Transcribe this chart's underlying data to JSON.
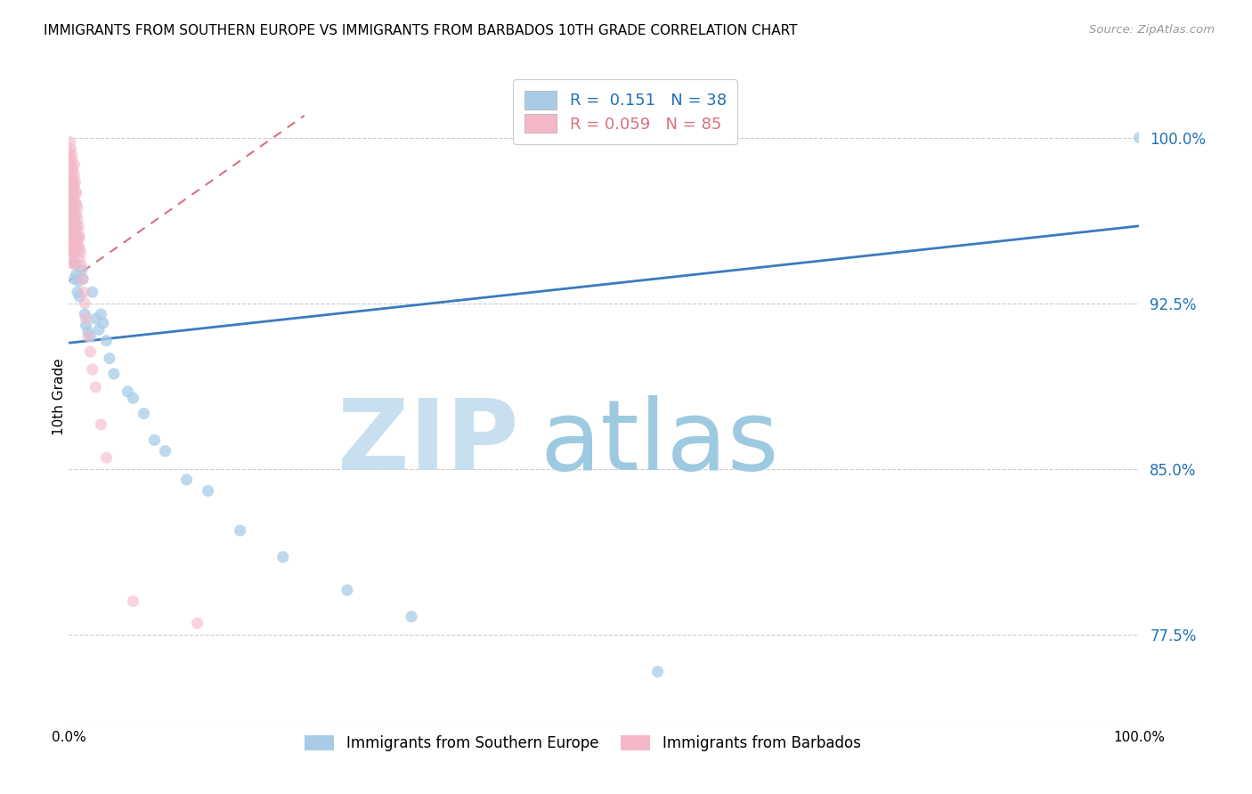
{
  "title": "IMMIGRANTS FROM SOUTHERN EUROPE VS IMMIGRANTS FROM BARBADOS 10TH GRADE CORRELATION CHART",
  "source": "Source: ZipAtlas.com",
  "ylabel": "10th Grade",
  "ytick_labels": [
    "77.5%",
    "85.0%",
    "92.5%",
    "100.0%"
  ],
  "ytick_values": [
    0.775,
    0.85,
    0.925,
    1.0
  ],
  "xlim": [
    0.0,
    1.0
  ],
  "ylim": [
    0.735,
    1.03
  ],
  "blue_R": 0.151,
  "blue_N": 38,
  "pink_R": 0.059,
  "pink_N": 85,
  "blue_color": "#a8cce8",
  "pink_color": "#f4b8c8",
  "blue_line_color": "#3a7bbf",
  "pink_line_color": "#d97080",
  "watermark_zip": "ZIP",
  "watermark_atlas": "atlas",
  "watermark_color_zip": "#c8dff0",
  "watermark_color_atlas": "#9ecae1",
  "blue_x": [
    0.002,
    0.003,
    0.003,
    0.004,
    0.005,
    0.005,
    0.006,
    0.007,
    0.008,
    0.009,
    0.01,
    0.012,
    0.013,
    0.015,
    0.016,
    0.018,
    0.02,
    0.022,
    0.025,
    0.028,
    0.03,
    0.032,
    0.035,
    0.038,
    0.042,
    0.055,
    0.06,
    0.07,
    0.08,
    0.09,
    0.11,
    0.13,
    0.16,
    0.2,
    0.26,
    0.32,
    0.55,
    1.0
  ],
  "blue_y": [
    0.96,
    0.97,
    0.955,
    0.965,
    0.948,
    0.936,
    0.943,
    0.938,
    0.93,
    0.935,
    0.928,
    0.94,
    0.936,
    0.92,
    0.915,
    0.912,
    0.91,
    0.93,
    0.918,
    0.913,
    0.92,
    0.916,
    0.908,
    0.9,
    0.893,
    0.885,
    0.882,
    0.875,
    0.863,
    0.858,
    0.845,
    0.84,
    0.822,
    0.81,
    0.795,
    0.783,
    0.758,
    1.0
  ],
  "pink_x": [
    0.001,
    0.001,
    0.001,
    0.001,
    0.001,
    0.001,
    0.001,
    0.001,
    0.001,
    0.001,
    0.002,
    0.002,
    0.002,
    0.002,
    0.002,
    0.002,
    0.002,
    0.002,
    0.002,
    0.002,
    0.002,
    0.003,
    0.003,
    0.003,
    0.003,
    0.003,
    0.003,
    0.003,
    0.003,
    0.003,
    0.003,
    0.003,
    0.004,
    0.004,
    0.004,
    0.004,
    0.004,
    0.004,
    0.004,
    0.004,
    0.005,
    0.005,
    0.005,
    0.005,
    0.005,
    0.005,
    0.005,
    0.005,
    0.005,
    0.005,
    0.006,
    0.006,
    0.006,
    0.006,
    0.006,
    0.006,
    0.007,
    0.007,
    0.007,
    0.007,
    0.007,
    0.008,
    0.008,
    0.008,
    0.008,
    0.009,
    0.009,
    0.009,
    0.01,
    0.01,
    0.01,
    0.011,
    0.012,
    0.013,
    0.014,
    0.015,
    0.016,
    0.018,
    0.02,
    0.022,
    0.025,
    0.03,
    0.035,
    0.06,
    0.12
  ],
  "pink_y": [
    0.998,
    0.993,
    0.988,
    0.982,
    0.978,
    0.973,
    0.968,
    0.963,
    0.958,
    0.953,
    0.995,
    0.99,
    0.985,
    0.98,
    0.975,
    0.97,
    0.965,
    0.96,
    0.955,
    0.95,
    0.945,
    0.992,
    0.987,
    0.982,
    0.978,
    0.973,
    0.968,
    0.963,
    0.958,
    0.953,
    0.948,
    0.943,
    0.985,
    0.98,
    0.975,
    0.97,
    0.965,
    0.96,
    0.955,
    0.95,
    0.988,
    0.983,
    0.978,
    0.973,
    0.968,
    0.963,
    0.958,
    0.953,
    0.948,
    0.943,
    0.98,
    0.975,
    0.97,
    0.965,
    0.96,
    0.955,
    0.975,
    0.97,
    0.965,
    0.96,
    0.955,
    0.968,
    0.963,
    0.958,
    0.953,
    0.96,
    0.955,
    0.95,
    0.955,
    0.95,
    0.945,
    0.948,
    0.942,
    0.936,
    0.93,
    0.925,
    0.918,
    0.91,
    0.903,
    0.895,
    0.887,
    0.87,
    0.855,
    0.79,
    0.78
  ],
  "blue_trend_x": [
    0.0,
    1.0
  ],
  "blue_trend_y": [
    0.907,
    0.96
  ],
  "pink_trend_x": [
    0.0,
    0.22
  ],
  "pink_trend_y": [
    0.935,
    1.01
  ]
}
